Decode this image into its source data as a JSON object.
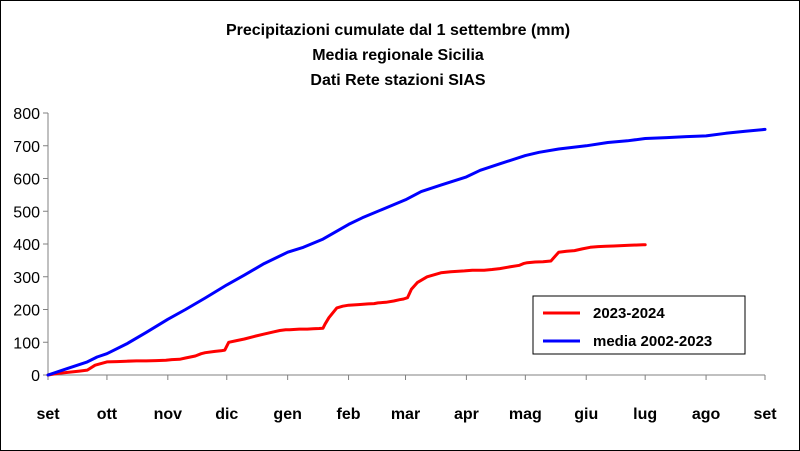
{
  "chart_data": {
    "type": "line",
    "title": [
      "Precipitazioni cumulate dal 1 settembre (mm)",
      "Media regionale Sicilia",
      "Dati Rete stazioni SIAS"
    ],
    "xlabel": "",
    "ylabel": "",
    "ylim": [
      0,
      800
    ],
    "yticks": [
      0,
      100,
      200,
      300,
      400,
      500,
      600,
      700,
      800
    ],
    "xlim": [
      0,
      365
    ],
    "month_labels": [
      "set",
      "ott",
      "nov",
      "dic",
      "gen",
      "feb",
      "mar",
      "apr",
      "mag",
      "giu",
      "lug",
      "ago",
      "set"
    ],
    "month_positions": [
      0,
      30,
      61,
      91,
      122,
      153,
      182,
      213,
      243,
      274,
      304,
      335,
      365
    ],
    "grid": false,
    "legend_position": "bottom-right",
    "series": [
      {
        "name": "2023-2024",
        "color": "#ff0000",
        "x": [
          0,
          5,
          10,
          16,
          20,
          24,
          30,
          35,
          40,
          45,
          50,
          55,
          60,
          63,
          67,
          70,
          75,
          78,
          80,
          85,
          88,
          90,
          92,
          96,
          100,
          105,
          110,
          115,
          118,
          121,
          123,
          128,
          132,
          135,
          138,
          140,
          141,
          143,
          147,
          150,
          153,
          158,
          163,
          166,
          168,
          172,
          176,
          179,
          181,
          183,
          185,
          188,
          193,
          200,
          205,
          212,
          216,
          219,
          222,
          226,
          230,
          235,
          240,
          242,
          244,
          248,
          252,
          256,
          260,
          264,
          268,
          272,
          276,
          280,
          284,
          288,
          292,
          296,
          300,
          303,
          304
        ],
        "values": [
          0,
          5,
          8,
          12,
          15,
          30,
          40,
          41,
          42,
          43,
          43,
          44,
          45,
          47,
          48,
          52,
          58,
          65,
          68,
          72,
          74,
          76,
          100,
          105,
          110,
          118,
          125,
          132,
          136,
          138,
          138,
          140,
          140,
          141,
          142,
          143,
          155,
          175,
          205,
          210,
          213,
          215,
          217,
          218,
          220,
          222,
          226,
          230,
          232,
          236,
          262,
          282,
          300,
          312,
          315,
          318,
          320,
          320,
          320,
          322,
          325,
          330,
          335,
          340,
          343,
          345,
          346,
          348,
          375,
          378,
          380,
          385,
          390,
          392,
          393,
          394,
          395,
          396,
          397,
          398,
          398
        ]
      },
      {
        "name": "media 2002-2023",
        "color": "#0000ff",
        "x": [
          0,
          10,
          20,
          25,
          30,
          40,
          50,
          61,
          70,
          80,
          91,
          100,
          110,
          122,
          130,
          140,
          153,
          160,
          170,
          182,
          190,
          200,
          213,
          220,
          230,
          243,
          250,
          260,
          274,
          285,
          295,
          304,
          315,
          325,
          335,
          345,
          355,
          365
        ],
        "values": [
          0,
          20,
          40,
          55,
          65,
          95,
          130,
          170,
          200,
          235,
          275,
          305,
          340,
          375,
          390,
          415,
          460,
          480,
          505,
          535,
          560,
          580,
          605,
          625,
          645,
          670,
          680,
          690,
          700,
          710,
          715,
          722,
          725,
          728,
          730,
          738,
          744,
          750
        ]
      }
    ]
  }
}
